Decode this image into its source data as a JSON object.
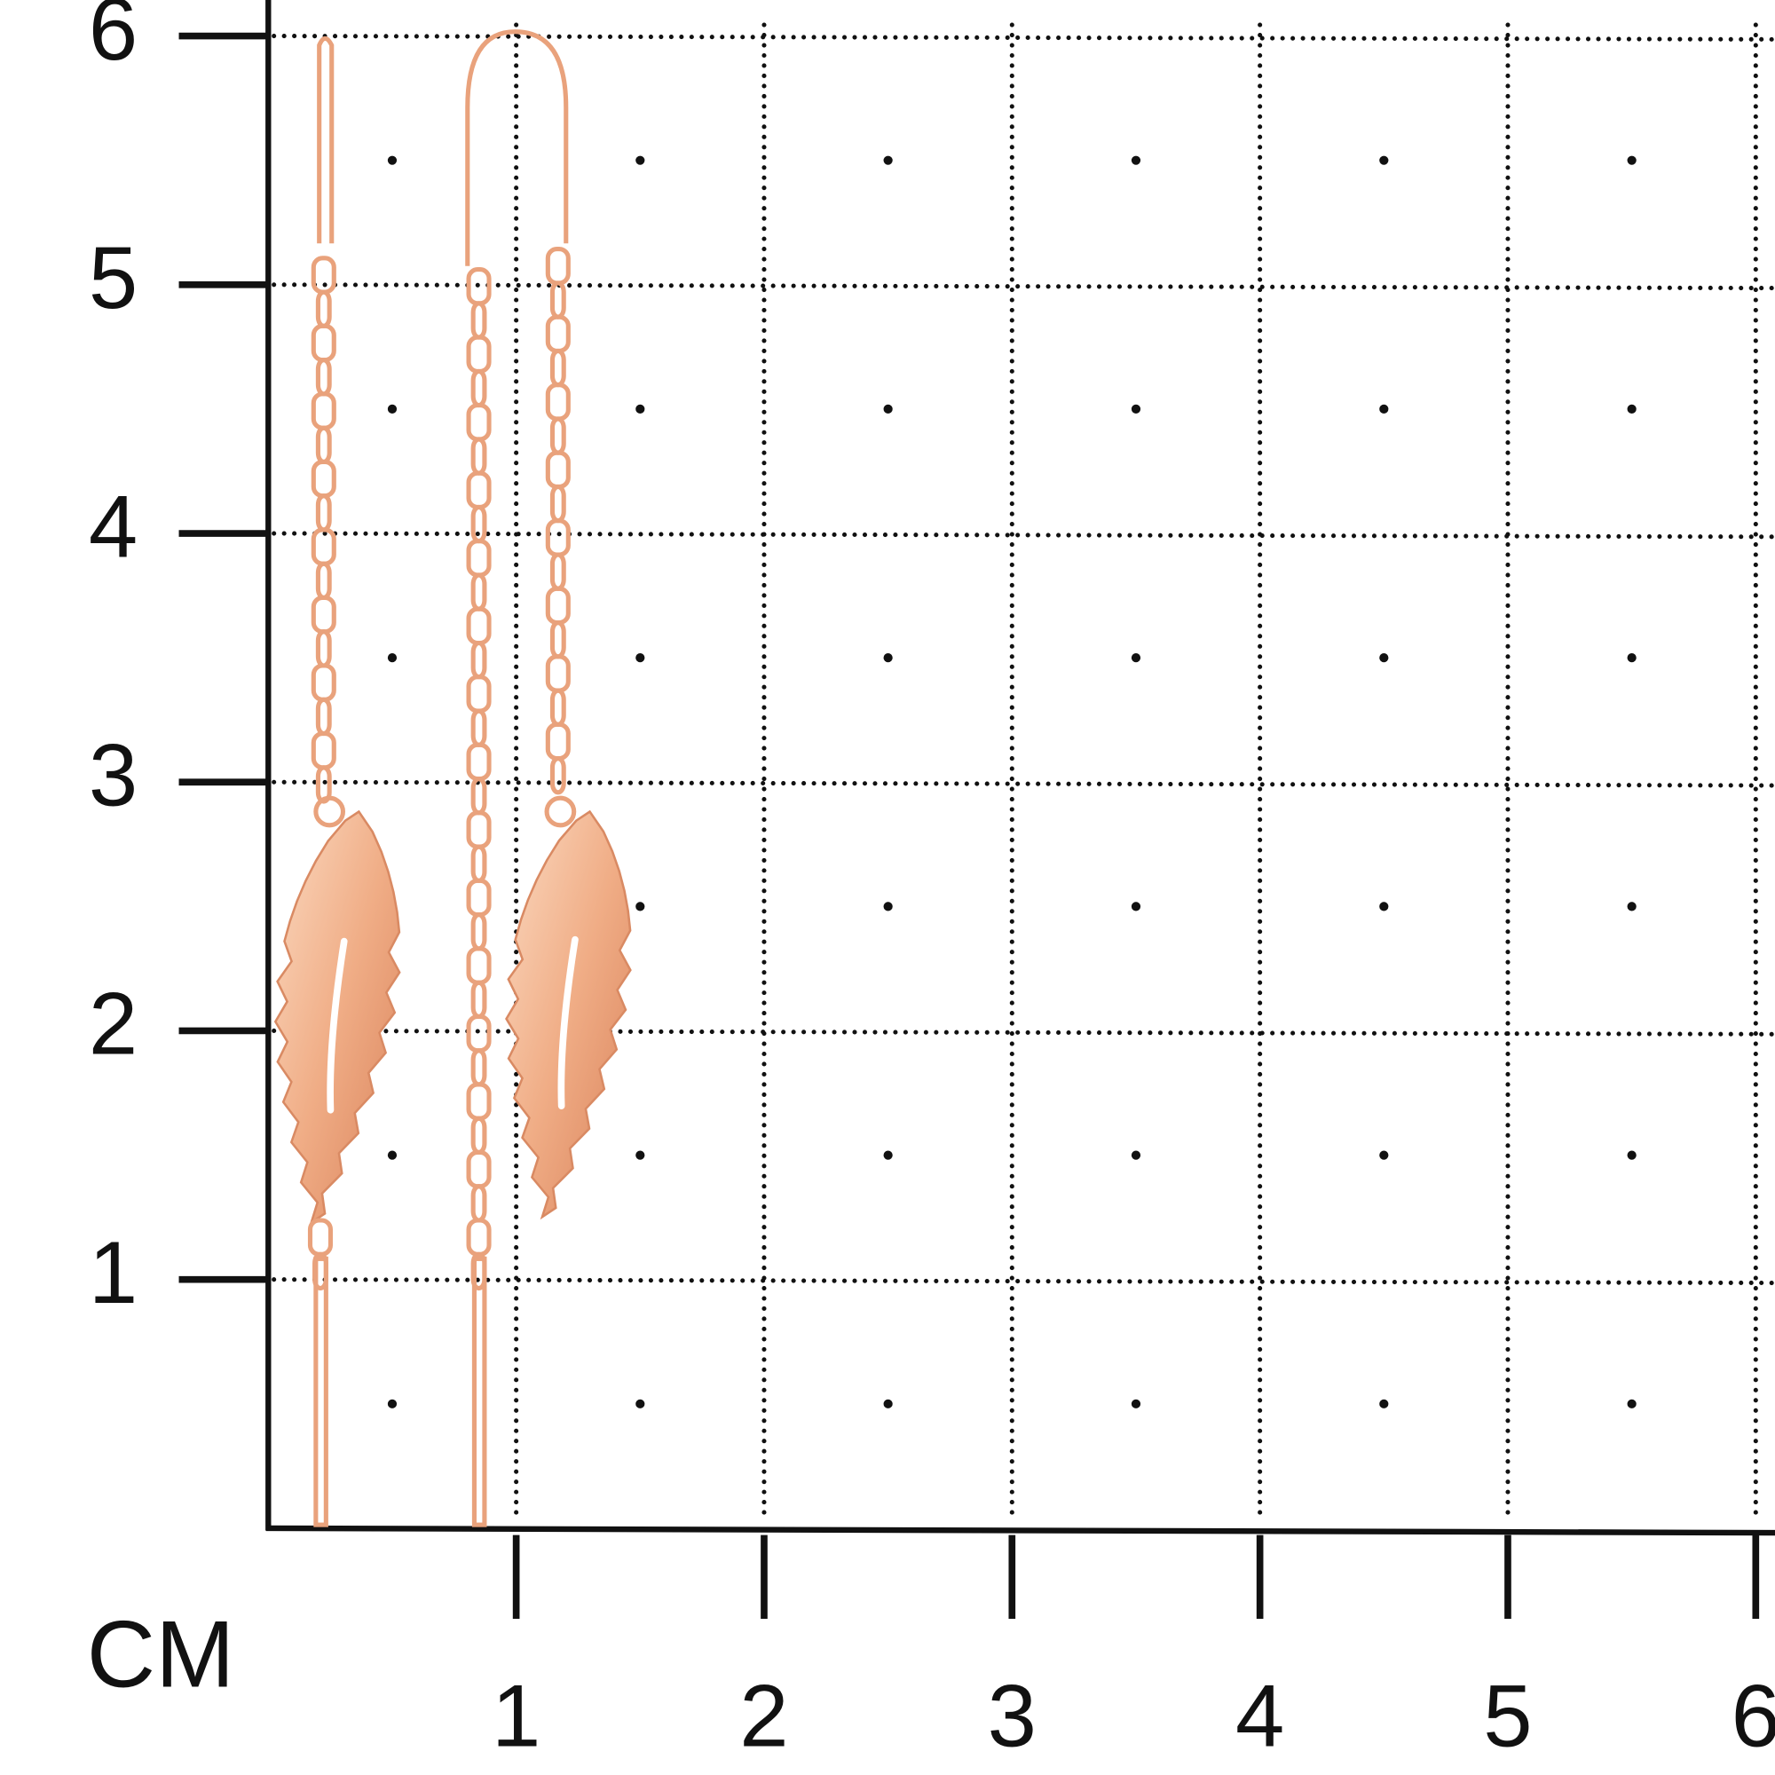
{
  "scale": {
    "unit": "CM",
    "x_ticks": [
      1,
      2,
      3,
      4,
      5,
      6
    ],
    "y_ticks": [
      1,
      2,
      3,
      4,
      5,
      6
    ]
  }
}
